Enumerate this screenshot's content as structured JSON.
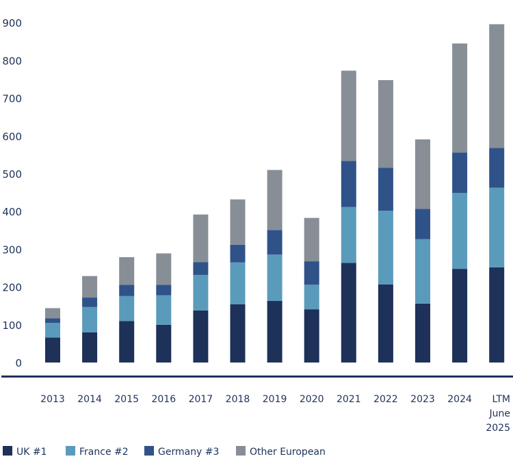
{
  "chart_data": {
    "type": "bar",
    "stacked": true,
    "title": "",
    "xlabel": "",
    "ylabel": "",
    "ylim": [
      0,
      900
    ],
    "yticks": [
      0,
      100,
      200,
      300,
      400,
      500,
      600,
      700,
      800,
      900
    ],
    "grid": false,
    "legend_position": "bottom-left",
    "categories": [
      "2013",
      "2014",
      "2015",
      "2016",
      "2017",
      "2018",
      "2019",
      "2020",
      "2021",
      "2022",
      "2023",
      "2024",
      "LTM June 2025"
    ],
    "category_lines": [
      [
        "2013"
      ],
      [
        "2014"
      ],
      [
        "2015"
      ],
      [
        "2016"
      ],
      [
        "2017"
      ],
      [
        "2018"
      ],
      [
        "2019"
      ],
      [
        "2020"
      ],
      [
        "2021"
      ],
      [
        "2022"
      ],
      [
        "2023"
      ],
      [
        "2024"
      ],
      [
        "LTM",
        "June",
        "2025"
      ]
    ],
    "series": [
      {
        "name": "UK #1",
        "color": "#1d3159",
        "values": [
          66,
          80,
          110,
          100,
          138,
          154,
          163,
          141,
          264,
          207,
          156,
          248,
          252
        ]
      },
      {
        "name": "France #2",
        "color": "#5a9bbb",
        "values": [
          39,
          67,
          66,
          78,
          94,
          111,
          123,
          65,
          148,
          195,
          171,
          201,
          211
        ]
      },
      {
        "name": "Germany #3",
        "color": "#2f5289",
        "values": [
          12,
          25,
          30,
          28,
          34,
          47,
          65,
          62,
          122,
          114,
          80,
          107,
          105
        ]
      },
      {
        "name": "Other European",
        "color": "#878e96",
        "values": [
          27,
          57,
          73,
          83,
          126,
          120,
          159,
          115,
          239,
          232,
          184,
          289,
          328
        ]
      }
    ]
  }
}
